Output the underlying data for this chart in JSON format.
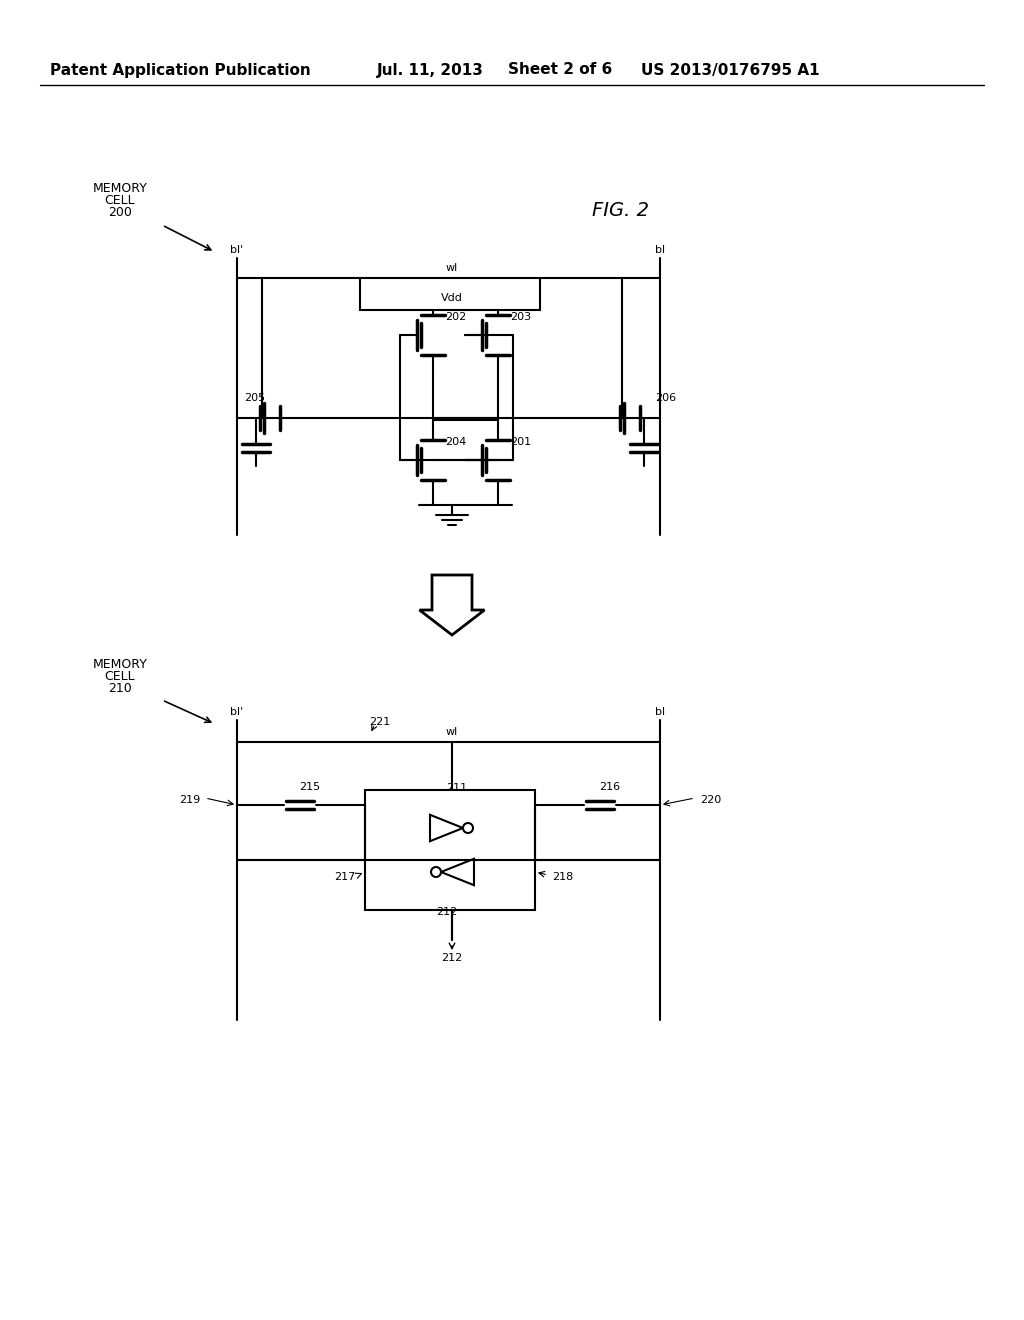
{
  "bg_color": "#ffffff",
  "line_color": "#000000",
  "header_text": "Patent Application Publication",
  "header_date": "Jul. 11, 2013",
  "header_sheet": "Sheet 2 of 6",
  "header_patent": "US 2013/0176795 A1",
  "fig_label": "FIG. 2",
  "fig_label_italic": true,
  "top_cell_label": [
    "MEMORY",
    "CELL",
    "200"
  ],
  "bot_cell_label": [
    "MEMORY",
    "CELL",
    "210"
  ],
  "lw": 1.5,
  "lw_thick": 2.5
}
